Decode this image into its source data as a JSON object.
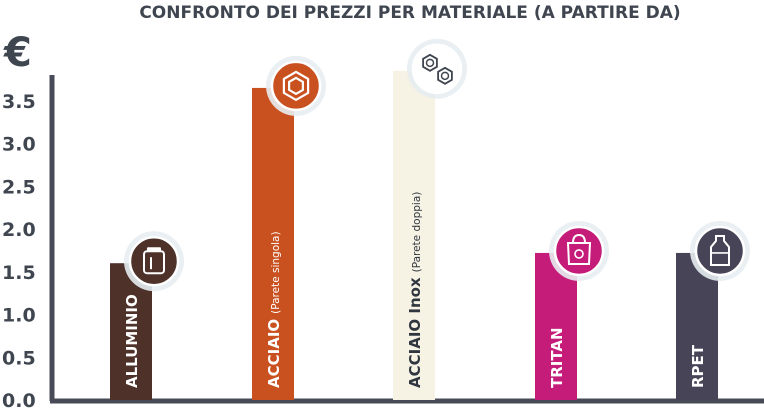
{
  "chart_data": {
    "type": "bar",
    "title": "CONFRONTO DEI PREZZI PER MATERIALE (A PARTIRE DA)",
    "ylabel": "€",
    "xlabel": "",
    "ylim": [
      0,
      3.9
    ],
    "yticks": [
      "0.0",
      "0.5",
      "1.0",
      "1.5",
      "2.0",
      "2.5",
      "3.0",
      "3.5"
    ],
    "ytick_values": [
      0,
      0.5,
      1.0,
      1.5,
      2.0,
      2.5,
      3.0,
      3.5
    ],
    "grid": false,
    "categories": [
      {
        "label": "ALLUMINIO",
        "sub": "",
        "value": 1.6,
        "color": "#4e3229",
        "text_color": "#ffffff",
        "icon": "aluminum-can-icon"
      },
      {
        "label": "ACCIAIO",
        "sub": "(Parete singola)",
        "value": 3.65,
        "color": "#c9501f",
        "text_color": "#ffffff",
        "icon": "steel-hexagon-icon"
      },
      {
        "label": "ACCIAIO Inox",
        "sub": "(Parete doppia)",
        "value": 3.85,
        "color": "#f6f2e4",
        "text_color": "#2f3640",
        "icon": "stainless-double-hexagon-icon"
      },
      {
        "label": "TRITAN",
        "sub": "",
        "value": 1.72,
        "color": "#c51c7a",
        "text_color": "#ffffff",
        "icon": "recycle-bag-icon"
      },
      {
        "label": "RPET",
        "sub": "",
        "value": 1.72,
        "color": "#474458",
        "text_color": "#ffffff",
        "icon": "plastic-bottle-icon"
      }
    ]
  }
}
